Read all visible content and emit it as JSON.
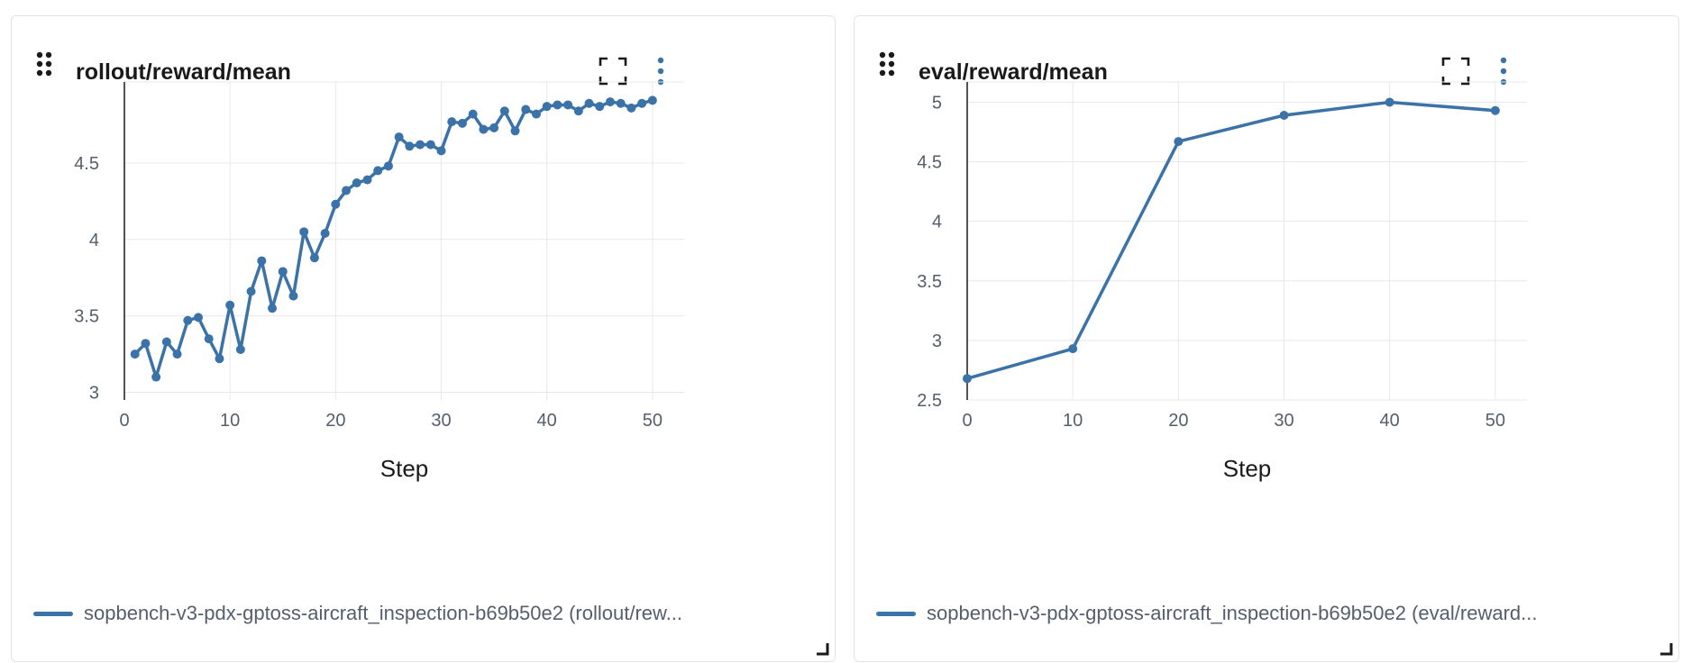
{
  "panels": [
    {
      "title": "rollout/reward/mean",
      "legend_label": "sopbench-v3-pdx-gptoss-aircraft_inspection-b69b50e2 (rollout/rew...",
      "chart_data": {
        "type": "line",
        "title": "rollout/reward/mean",
        "xlabel": "Step",
        "ylabel": "",
        "xlim": [
          0,
          53
        ],
        "ylim": [
          2.95,
          5.03
        ],
        "xticks": [
          0,
          10,
          20,
          30,
          40,
          50
        ],
        "xtick_labels": [
          "0",
          "10",
          "20",
          "30",
          "40",
          "50"
        ],
        "yticks": [
          3,
          3.5,
          4,
          4.5
        ],
        "ytick_labels": [
          "3",
          "3.5",
          "4",
          "4.5"
        ],
        "grid": true,
        "legend": "bottom",
        "color": "#3b72a8",
        "series": [
          {
            "name": "sopbench-v3-pdx-gptoss-aircraft_inspection-b69b50e2 (rollout/rew...",
            "x": [
              1,
              2,
              3,
              4,
              5,
              6,
              7,
              8,
              9,
              10,
              11,
              12,
              13,
              14,
              15,
              16,
              17,
              18,
              19,
              20,
              21,
              22,
              23,
              24,
              25,
              26,
              27,
              28,
              29,
              30,
              31,
              32,
              33,
              34,
              35,
              36,
              37,
              38,
              39,
              40,
              41,
              42,
              43,
              44,
              45,
              46,
              47,
              48,
              49,
              50
            ],
            "y": [
              3.25,
              3.32,
              3.1,
              3.33,
              3.25,
              3.47,
              3.49,
              3.35,
              3.22,
              3.57,
              3.28,
              3.66,
              3.86,
              3.55,
              3.79,
              3.63,
              4.05,
              3.88,
              4.04,
              4.23,
              4.32,
              4.37,
              4.39,
              4.45,
              4.48,
              4.67,
              4.61,
              4.62,
              4.62,
              4.58,
              4.77,
              4.76,
              4.82,
              4.72,
              4.73,
              4.84,
              4.71,
              4.85,
              4.82,
              4.87,
              4.88,
              4.88,
              4.84,
              4.89,
              4.87,
              4.9,
              4.89,
              4.86,
              4.89,
              4.91
            ]
          }
        ]
      }
    },
    {
      "title": "eval/reward/mean",
      "legend_label": "sopbench-v3-pdx-gptoss-aircraft_inspection-b69b50e2 (eval/reward...",
      "chart_data": {
        "type": "line",
        "title": "eval/reward/mean",
        "xlabel": "Step",
        "ylabel": "",
        "xlim": [
          0,
          53
        ],
        "ylim": [
          2.5,
          5.17
        ],
        "xticks": [
          0,
          10,
          20,
          30,
          40,
          50
        ],
        "xtick_labels": [
          "0",
          "10",
          "20",
          "30",
          "40",
          "50"
        ],
        "yticks": [
          2.5,
          3,
          3.5,
          4,
          4.5,
          5
        ],
        "ytick_labels": [
          "2.5",
          "3",
          "3.5",
          "4",
          "4.5",
          "5"
        ],
        "grid": true,
        "legend": "bottom",
        "color": "#3b72a8",
        "series": [
          {
            "name": "sopbench-v3-pdx-gptoss-aircraft_inspection-b69b50e2 (eval/reward...",
            "x": [
              0,
              10,
              20,
              30,
              40,
              50
            ],
            "y": [
              2.68,
              2.93,
              4.67,
              4.89,
              5.0,
              4.93
            ]
          }
        ]
      }
    }
  ]
}
